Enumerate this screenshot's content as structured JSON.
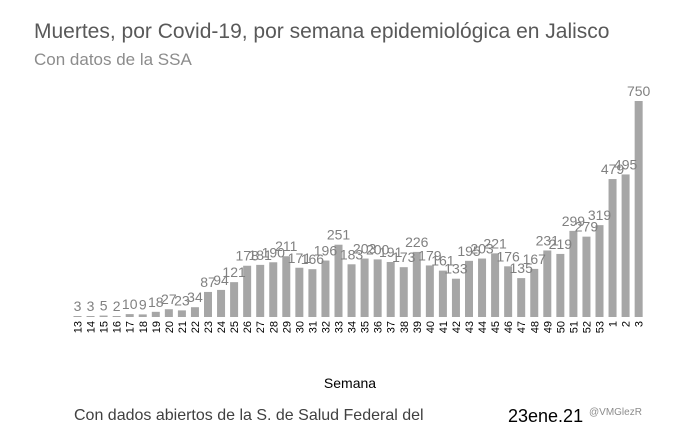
{
  "chart_data": {
    "type": "bar",
    "title": "Muertes, por Covid-19, por semana epidemiológica en Jalisco",
    "subtitle": "Con datos de la SSA",
    "xlabel": "Semana",
    "ylabel": "",
    "categories": [
      "13",
      "14",
      "15",
      "16",
      "17",
      "18",
      "19",
      "20",
      "21",
      "22",
      "23",
      "24",
      "25",
      "26",
      "27",
      "28",
      "29",
      "30",
      "31",
      "32",
      "33",
      "34",
      "35",
      "36",
      "37",
      "38",
      "39",
      "40",
      "41",
      "42",
      "43",
      "44",
      "45",
      "46",
      "47",
      "48",
      "49",
      "50",
      "51",
      "52",
      "53",
      "1",
      "2",
      "3"
    ],
    "values": [
      3,
      3,
      5,
      2,
      10,
      9,
      18,
      27,
      23,
      34,
      87,
      94,
      121,
      178,
      181,
      190,
      211,
      171,
      166,
      196,
      251,
      183,
      203,
      200,
      191,
      173,
      226,
      179,
      161,
      133,
      195,
      203,
      221,
      176,
      135,
      167,
      231,
      219,
      299,
      279,
      319,
      479,
      495,
      750
    ],
    "data_labels": [
      "3",
      "3",
      "5",
      "2",
      "10",
      "9",
      "18",
      "27",
      "23",
      "34",
      "87",
      "94",
      "121",
      "178",
      "181",
      "190",
      "211",
      "171",
      "166",
      "196",
      "251",
      "183",
      "203",
      "200",
      "191",
      "173",
      "226",
      "179",
      "161",
      "133",
      "195",
      "203",
      "221",
      "176",
      "135",
      "167",
      "231",
      "219",
      "299",
      "279",
      "319",
      "479",
      "495",
      "750"
    ],
    "ylim": [
      0,
      750
    ],
    "grid": false,
    "bar_color": "#a6a6a6",
    "label_color": "#808080"
  },
  "footer": {
    "source": "Con dados abiertos  de la S. de Salud Federal del",
    "date": "23ene.21",
    "credit": "@VMGlezR"
  }
}
